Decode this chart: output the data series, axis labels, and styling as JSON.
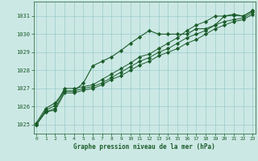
{
  "bg_color": "#cce8e4",
  "grid_color": "#99cccc",
  "line_color": "#1a5c2a",
  "title": "Graphe pression niveau de la mer (hPa)",
  "title_color": "#1a5c2a",
  "ylim": [
    1024.5,
    1031.8
  ],
  "yticks": [
    1025,
    1026,
    1027,
    1028,
    1029,
    1030,
    1031
  ],
  "xlim": [
    -0.3,
    23.3
  ],
  "xticks": [
    0,
    1,
    2,
    3,
    4,
    5,
    6,
    7,
    8,
    9,
    10,
    11,
    12,
    13,
    14,
    15,
    16,
    17,
    18,
    19,
    20,
    21,
    22,
    23
  ],
  "series1": [
    1025.1,
    1025.9,
    1026.2,
    1026.85,
    1026.85,
    1027.3,
    1028.25,
    1028.5,
    1028.75,
    1029.1,
    1029.5,
    1029.85,
    1030.2,
    1030.0,
    1030.0,
    1030.0,
    1030.0,
    1030.3,
    1030.3,
    1030.5,
    1031.0,
    1031.1,
    1031.0,
    1031.3
  ],
  "series2": [
    1025.0,
    1025.8,
    1026.05,
    1027.0,
    1027.0,
    1027.1,
    1027.2,
    1027.5,
    1027.8,
    1028.1,
    1028.4,
    1028.75,
    1028.9,
    1029.2,
    1029.5,
    1029.8,
    1030.2,
    1030.5,
    1030.7,
    1031.0,
    1031.0,
    1031.05,
    1031.0,
    1031.3
  ],
  "series3": [
    1025.0,
    1025.7,
    1025.9,
    1026.85,
    1026.85,
    1027.0,
    1027.1,
    1027.3,
    1027.6,
    1027.9,
    1028.2,
    1028.5,
    1028.7,
    1029.0,
    1029.2,
    1029.5,
    1029.8,
    1030.0,
    1030.2,
    1030.5,
    1030.7,
    1030.8,
    1030.9,
    1031.2
  ],
  "series4": [
    1025.0,
    1025.7,
    1025.8,
    1026.75,
    1026.75,
    1026.9,
    1027.0,
    1027.2,
    1027.5,
    1027.7,
    1028.0,
    1028.3,
    1028.5,
    1028.8,
    1029.0,
    1029.2,
    1029.5,
    1029.7,
    1030.0,
    1030.3,
    1030.5,
    1030.7,
    1030.8,
    1031.1
  ]
}
